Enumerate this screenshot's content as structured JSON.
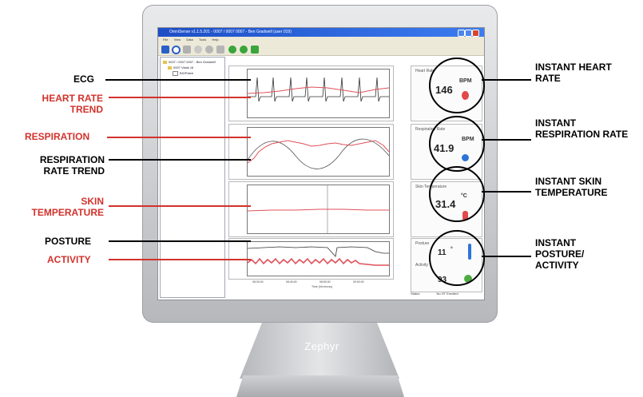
{
  "app": {
    "title": "OmniSense v1.1.5.201 - 0007 / 0007 0007 - Ben Gradwell (user 019)",
    "menu": [
      "File",
      "View",
      "Data",
      "Tools",
      "Help"
    ],
    "tree": [
      "0007 / 0007 0007 - Ben Gradwell",
      "0007 Vitals 16",
      "BIOPatch"
    ],
    "time_axis_label": "Time (hh:mm:ss)",
    "time_ticks": [
      "08:30:00",
      "08:40:00",
      "08:50:00",
      "09:00:00"
    ],
    "status_label": "Status",
    "status_value": "No HT Enrolled"
  },
  "vitals": {
    "heart_rate": {
      "title": "Heart Rate",
      "value": "146",
      "unit": "BPM",
      "icon": "heart-icon"
    },
    "respiration_rate": {
      "title": "Respiration Rate",
      "value": "41.9",
      "unit": "BPM",
      "icon": "lungs-icon"
    },
    "skin_temperature": {
      "title": "Skin Temperature",
      "value": "31.4",
      "unit": "°C",
      "icon": "thermometer-icon"
    },
    "posture": {
      "title": "Posture",
      "value": "11",
      "unit": "°",
      "icon": "person-icon"
    },
    "activity": {
      "title": "Activity",
      "value": "93",
      "icon": "walking-icon"
    }
  },
  "callouts_left": [
    {
      "text": "ECG",
      "color": "#000000"
    },
    {
      "text": "HEART RATE TREND",
      "color": "#d2322c"
    },
    {
      "text": "RESPIRATION",
      "color": "#d2322c"
    },
    {
      "text": "RESPIRATION RATE TREND",
      "color": "#000000"
    },
    {
      "text": "SKIN TEMPERATURE",
      "color": "#d2322c"
    },
    {
      "text": "POSTURE",
      "color": "#000000"
    },
    {
      "text": "ACTIVITY",
      "color": "#d2322c"
    }
  ],
  "callouts_right": [
    {
      "text": "INSTANT HEART RATE"
    },
    {
      "text": "INSTANT RESPIRATION RATE"
    },
    {
      "text": "INSTANT SKIN TEMPERATURE"
    },
    {
      "text": "INSTANT POSTURE/ ACTIVITY"
    }
  ],
  "brand": "Zephyr",
  "colors": {
    "accent_red": "#d2322c",
    "trace_red": "#e0505a",
    "trace_black": "#333333",
    "title_blue": "#1d4ec6"
  }
}
